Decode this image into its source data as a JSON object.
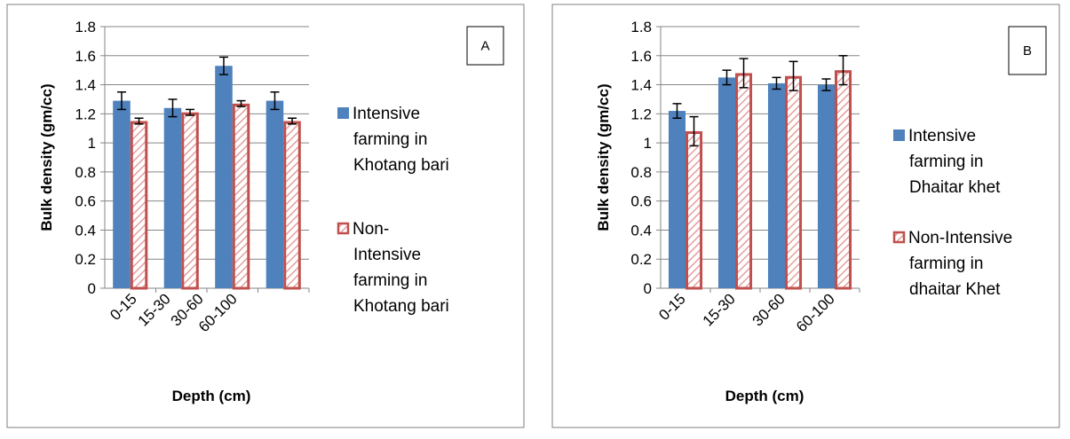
{
  "chart_data": [
    {
      "type": "bar",
      "panel_label": "A",
      "xlabel": "Depth (cm)",
      "ylabel": "Bulk density (gm/cc)",
      "ylim": [
        0,
        1.8
      ],
      "yticks": [
        "0",
        "0.2",
        "0.4",
        "0.6",
        "0.8",
        "1",
        "1.2",
        "1.4",
        "1.6",
        "1.8"
      ],
      "categories": [
        "0-15",
        "15-30",
        "30-60",
        "60-100"
      ],
      "grid": true,
      "legend_position": "right",
      "series": [
        {
          "name_lines": [
            "Intensive",
            "farming in",
            "Khotang bari"
          ],
          "pattern": "solid",
          "color": "#4f81bd",
          "values": [
            1.29,
            1.24,
            1.53,
            1.29
          ],
          "errors": [
            0.06,
            0.06,
            0.06,
            0.06
          ]
        },
        {
          "name_lines": [
            "Non-",
            "Intensive",
            "farming in",
            "Khotang bari"
          ],
          "pattern": "hatched",
          "color": "#c0504d",
          "values": [
            1.15,
            1.21,
            1.27,
            1.15
          ],
          "errors": [
            0.02,
            0.02,
            0.02,
            0.02
          ]
        }
      ]
    },
    {
      "type": "bar",
      "panel_label": "B",
      "xlabel": "Depth (cm)",
      "ylabel": "Bulk density (gm/cc)",
      "ylim": [
        0,
        1.8
      ],
      "yticks": [
        "0",
        "0.2",
        "0.4",
        "0.6",
        "0.8",
        "1",
        "1.2",
        "1.4",
        "1.6",
        "1.8"
      ],
      "categories": [
        "0-15",
        "15-30",
        "30-60",
        "60-100"
      ],
      "grid": true,
      "legend_position": "right",
      "series": [
        {
          "name_lines": [
            "Intensive",
            "farming in",
            "Dhaitar khet"
          ],
          "pattern": "solid",
          "color": "#4f81bd",
          "values": [
            1.22,
            1.45,
            1.41,
            1.4
          ],
          "errors": [
            0.05,
            0.05,
            0.04,
            0.04
          ]
        },
        {
          "name_lines": [
            "Non-Intensive",
            "farming in",
            "dhaitar Khet"
          ],
          "pattern": "hatched",
          "color": "#c0504d",
          "values": [
            1.08,
            1.48,
            1.46,
            1.5
          ],
          "errors": [
            0.1,
            0.1,
            0.1,
            0.1
          ]
        }
      ]
    }
  ]
}
